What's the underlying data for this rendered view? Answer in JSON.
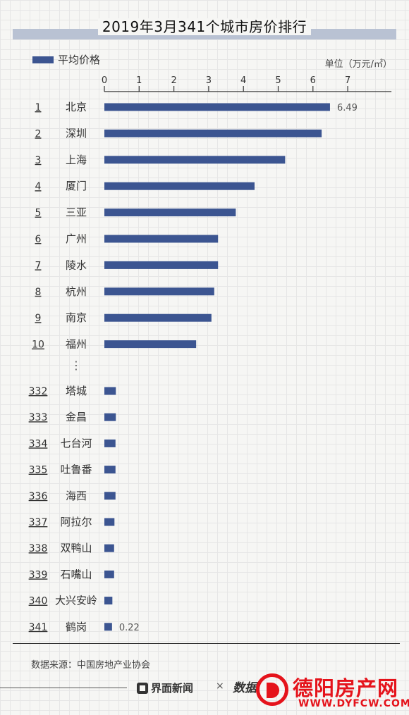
{
  "title": "2019年3月341个城市房价排行",
  "legend": {
    "label": "平均价格",
    "color": "#3c5591"
  },
  "unit_label": "单位（万元/㎡）",
  "source": "数据来源：中国房地产业协会",
  "brands": {
    "jiemian": "界面新闻",
    "separator": "×",
    "shuju": "数据",
    "site_name": "德阳房产网",
    "site_url": "WWW.DYFCW.COM"
  },
  "ellipsis": "⋮",
  "chart_data": {
    "type": "bar",
    "orientation": "horizontal",
    "xlim": [
      0,
      7
    ],
    "xticks": [
      "0",
      "1",
      "2",
      "3",
      "4",
      "5",
      "6",
      "7"
    ],
    "bar_color": "#3c5591",
    "top_group": [
      {
        "rank": "1",
        "city": "北京",
        "value": 6.49,
        "label": "6.49"
      },
      {
        "rank": "2",
        "city": "深圳",
        "value": 6.25
      },
      {
        "rank": "3",
        "city": "上海",
        "value": 5.2
      },
      {
        "rank": "4",
        "city": "厦门",
        "value": 4.32
      },
      {
        "rank": "5",
        "city": "三亚",
        "value": 3.78
      },
      {
        "rank": "6",
        "city": "广州",
        "value": 3.27
      },
      {
        "rank": "7",
        "city": "陵水",
        "value": 3.27
      },
      {
        "rank": "8",
        "city": "杭州",
        "value": 3.16
      },
      {
        "rank": "9",
        "city": "南京",
        "value": 3.08
      },
      {
        "rank": "10",
        "city": "福州",
        "value": 2.64
      }
    ],
    "bottom_group": [
      {
        "rank": "332",
        "city": "塔城",
        "value": 0.33
      },
      {
        "rank": "333",
        "city": "金昌",
        "value": 0.33
      },
      {
        "rank": "334",
        "city": "七台河",
        "value": 0.32
      },
      {
        "rank": "335",
        "city": "吐鲁番",
        "value": 0.32
      },
      {
        "rank": "336",
        "city": "海西",
        "value": 0.32
      },
      {
        "rank": "337",
        "city": "阿拉尔",
        "value": 0.29
      },
      {
        "rank": "338",
        "city": "双鸭山",
        "value": 0.28
      },
      {
        "rank": "339",
        "city": "石嘴山",
        "value": 0.28
      },
      {
        "rank": "340",
        "city": "大兴安岭",
        "value": 0.23
      },
      {
        "rank": "341",
        "city": "鹤岗",
        "value": 0.22,
        "label": "0.22"
      }
    ]
  }
}
